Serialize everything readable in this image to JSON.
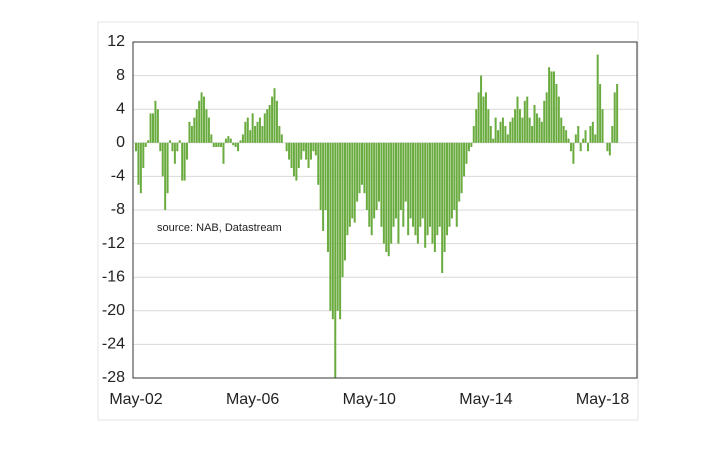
{
  "chart_data": {
    "type": "bar",
    "annotation": "source:  NAB, Datastream",
    "categories": [
      "May-02",
      null,
      null,
      null,
      null,
      null,
      null,
      null,
      null,
      null,
      null,
      null,
      null,
      null,
      null,
      null,
      null,
      null,
      null,
      null,
      null,
      null,
      null,
      null,
      null,
      null,
      null,
      null,
      null,
      null,
      null,
      null,
      null,
      null,
      null,
      null,
      null,
      null,
      null,
      null,
      null,
      null,
      null,
      null,
      null,
      null,
      null,
      null,
      "May-06",
      null,
      null,
      null,
      null,
      null,
      null,
      null,
      null,
      null,
      null,
      null,
      null,
      null,
      null,
      null,
      null,
      null,
      null,
      null,
      null,
      null,
      null,
      null,
      null,
      null,
      null,
      null,
      null,
      null,
      null,
      null,
      null,
      null,
      null,
      null,
      null,
      null,
      null,
      null,
      null,
      null,
      null,
      null,
      null,
      null,
      null,
      null,
      "May-10",
      null,
      null,
      null,
      null,
      null,
      null,
      null,
      null,
      null,
      null,
      null,
      null,
      null,
      null,
      null,
      null,
      null,
      null,
      null,
      null,
      null,
      null,
      null,
      null,
      null,
      null,
      null,
      null,
      null,
      null,
      null,
      null,
      null,
      null,
      null,
      null,
      null,
      null,
      null,
      null,
      null,
      null,
      null,
      null,
      null,
      null,
      null,
      "May-14",
      null,
      null,
      null,
      null,
      null,
      null,
      null,
      null,
      null,
      null,
      null,
      null,
      null,
      null,
      null,
      null,
      null,
      null,
      null,
      null,
      null,
      null,
      null,
      null,
      null,
      null,
      null,
      null,
      null,
      null,
      null,
      null,
      null,
      null,
      null,
      null,
      null,
      null,
      null,
      null,
      null,
      null,
      null,
      null,
      null,
      null,
      null,
      "May-18",
      null,
      null,
      null,
      null,
      null,
      null,
      null
    ],
    "values": [
      -1,
      -5,
      -6,
      -3,
      -0.5,
      0.3,
      3.5,
      3.5,
      5,
      4,
      -1,
      -4,
      -8,
      -6,
      0.3,
      -1,
      -2.5,
      -1,
      0.3,
      -4.5,
      -4.5,
      -2,
      2.5,
      2,
      3,
      4,
      5,
      6,
      5.5,
      4,
      3,
      1,
      -0.5,
      -0.5,
      -0.5,
      -0.5,
      -2.5,
      0.5,
      0.8,
      0.5,
      -0.3,
      -0.5,
      -1,
      0.3,
      1,
      2.5,
      3,
      1.5,
      3.5,
      2,
      2.5,
      3,
      2,
      3.5,
      4,
      4.5,
      5.5,
      6.5,
      5,
      2,
      1,
      0,
      -1,
      -2,
      -3,
      -4,
      -4.5,
      -3,
      -2,
      -1,
      -2,
      -3,
      -2,
      -1,
      -1.5,
      -5,
      -8,
      -10.5,
      -8,
      -13,
      -20,
      -21,
      -28,
      -20,
      -21,
      -16,
      -14,
      -11,
      -10,
      -9,
      -9.5,
      -7,
      -6,
      -5,
      -6,
      -8,
      -10,
      -11,
      -9,
      -8,
      -7,
      -10,
      -12,
      -13,
      -13.5,
      -12,
      -10,
      -9,
      -12,
      -8,
      -10,
      -7,
      -11,
      -9,
      -10,
      -11,
      -12,
      -10,
      -9,
      -12.5,
      -11,
      -10,
      -12,
      -13,
      -11,
      -10,
      -15.5,
      -13,
      -11,
      -10,
      -9,
      -8,
      -10,
      -7,
      -6,
      -4,
      -2.5,
      -1,
      -0.5,
      2,
      4,
      6,
      8,
      5.5,
      6,
      4,
      2,
      0.5,
      3,
      1.5,
      2.5,
      3,
      2,
      1,
      2.5,
      3,
      4,
      5.5,
      4,
      3,
      5,
      5.5,
      3,
      2,
      4.5,
      3.5,
      3,
      2.5,
      5,
      6,
      9,
      8.5,
      8.5,
      7,
      5.5,
      3,
      2,
      1.5,
      0.5,
      -1,
      -2.5,
      1,
      2,
      -1,
      0.5,
      1.5,
      -1,
      2,
      2.5,
      1,
      10.5,
      7,
      4,
      0,
      -1,
      -1.5,
      2,
      6,
      7,
      0
    ],
    "color": "#6aab3f",
    "ylim": [
      -28,
      12
    ],
    "yticks": [
      -28,
      -24,
      -20,
      -16,
      -12,
      -8,
      -4,
      0,
      4,
      8,
      12
    ],
    "grid": true
  }
}
